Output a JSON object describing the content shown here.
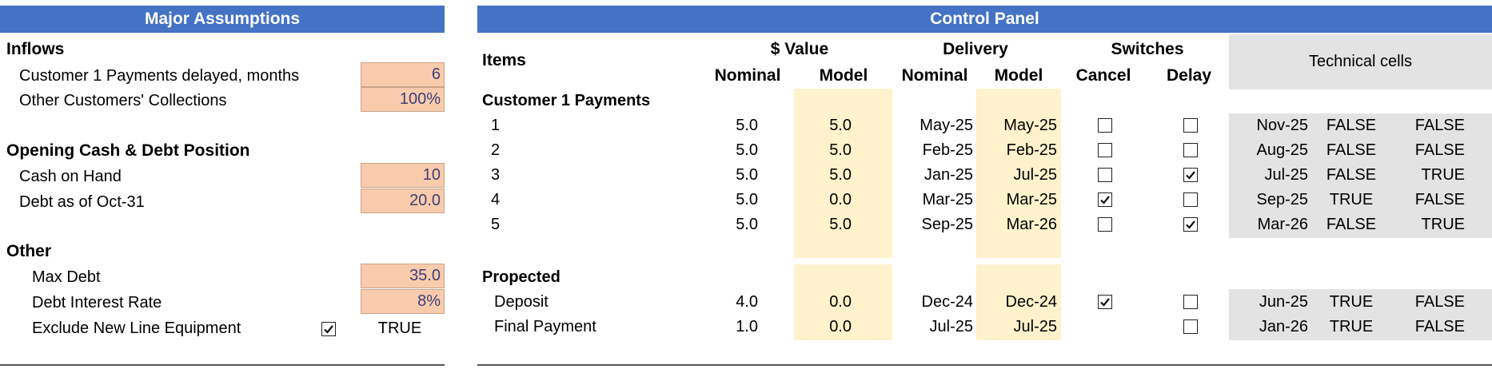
{
  "assumptions": {
    "title": "Major Assumptions",
    "sections": {
      "inflows": "Inflows",
      "opening": "Opening Cash & Debt Position",
      "other": "Other"
    },
    "rows": {
      "cust1_delay_label": "Customer 1 Payments delayed, months",
      "cust1_delay_value": "6",
      "collections_label": "Other Customers' Collections",
      "collections_value": "100%",
      "cash_label": "Cash on Hand",
      "cash_value": "10",
      "debt_label": "Debt as of Oct-31",
      "debt_value": "20.0",
      "maxdebt_label": "Max Debt",
      "maxdebt_value": "35.0",
      "rate_label": "Debt Interest Rate",
      "rate_value": "8%",
      "exclude_label": "Exclude New Line Equipment",
      "exclude_checked": true,
      "exclude_value": "TRUE"
    }
  },
  "control": {
    "title": "Control Panel",
    "headers": {
      "items": "Items",
      "value": "$ Value",
      "delivery": "Delivery",
      "switches": "Switches",
      "technical": "Technical cells",
      "nominal": "Nominal",
      "model": "Model",
      "cancel": "Cancel",
      "delay": "Delay"
    },
    "groups": {
      "customer1": "Customer 1 Payments",
      "projected": "Propected"
    },
    "customer1_rows": [
      {
        "item": "1",
        "nom_val": "5.0",
        "mod_val": "5.0",
        "nom_del": "May-25",
        "mod_del": "May-25",
        "cancel": false,
        "delay": false,
        "t1": "Nov-25",
        "t2": "FALSE",
        "t3": "FALSE"
      },
      {
        "item": "2",
        "nom_val": "5.0",
        "mod_val": "5.0",
        "nom_del": "Feb-25",
        "mod_del": "Feb-25",
        "cancel": false,
        "delay": false,
        "t1": "Aug-25",
        "t2": "FALSE",
        "t3": "FALSE"
      },
      {
        "item": "3",
        "nom_val": "5.0",
        "mod_val": "5.0",
        "nom_del": "Jan-25",
        "mod_del": "Jul-25",
        "cancel": false,
        "delay": true,
        "t1": "Jul-25",
        "t2": "FALSE",
        "t3": "TRUE"
      },
      {
        "item": "4",
        "nom_val": "5.0",
        "mod_val": "0.0",
        "nom_del": "Mar-25",
        "mod_del": "Mar-25",
        "cancel": true,
        "delay": false,
        "t1": "Sep-25",
        "t2": "TRUE",
        "t3": "FALSE"
      },
      {
        "item": "5",
        "nom_val": "5.0",
        "mod_val": "5.0",
        "nom_del": "Sep-25",
        "mod_del": "Mar-26",
        "cancel": false,
        "delay": true,
        "t1": "Mar-26",
        "t2": "FALSE",
        "t3": "TRUE"
      }
    ],
    "projected_rows": [
      {
        "item": "Deposit",
        "nom_val": "4.0",
        "mod_val": "0.0",
        "nom_del": "Dec-24",
        "mod_del": "Dec-24",
        "cancel": true,
        "has_cancel": true,
        "delay": false,
        "t1": "Jun-25",
        "t2": "TRUE",
        "t3": "FALSE"
      },
      {
        "item": "Final Payment",
        "nom_val": "1.0",
        "mod_val": "0.0",
        "nom_del": "Jul-25",
        "mod_del": "Jul-25",
        "cancel": false,
        "has_cancel": false,
        "delay": false,
        "t1": "Jan-26",
        "t2": "TRUE",
        "t3": "FALSE"
      }
    ]
  }
}
